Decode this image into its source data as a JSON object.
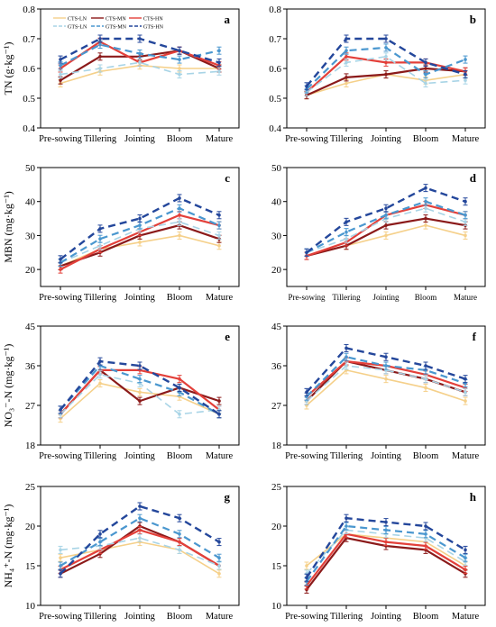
{
  "x_categories": [
    "Pre-sowing",
    "Tillering",
    "Jointing",
    "Bloom",
    "Mature"
  ],
  "legend": [
    "CTS-LN",
    "CTS-MN",
    "CTS-HN",
    "GTS-LN",
    "GTS-MN",
    "GTS-HN"
  ],
  "series_colors": {
    "CTS-LN": "#f5d08a",
    "CTS-MN": "#8b1a1a",
    "CTS-HN": "#e3403a",
    "GTS-LN": "#a8d4e6",
    "GTS-MN": "#4a97cf",
    "GTS-HN": "#24479b"
  },
  "chart_data": [
    {
      "panel": "a",
      "type": "line",
      "ylabel": "TN (g·kg⁻¹)",
      "ylim": [
        0.4,
        0.8
      ],
      "yticks": [
        "0.4",
        "0.5",
        "0.6",
        "0.7",
        "0.8"
      ],
      "x": [
        "Pre-sowing",
        "Tillering",
        "Jointing",
        "Bloom",
        "Mature"
      ],
      "legend_placement": "top-left",
      "series": [
        {
          "name": "CTS-LN",
          "values": [
            0.55,
            0.59,
            0.61,
            0.6,
            0.6
          ]
        },
        {
          "name": "CTS-MN",
          "values": [
            0.56,
            0.64,
            0.64,
            0.66,
            0.6
          ]
        },
        {
          "name": "CTS-HN",
          "values": [
            0.6,
            0.69,
            0.62,
            0.66,
            0.61
          ]
        },
        {
          "name": "GTS-LN",
          "values": [
            0.58,
            0.6,
            0.62,
            0.58,
            0.59
          ]
        },
        {
          "name": "GTS-MN",
          "values": [
            0.61,
            0.68,
            0.65,
            0.63,
            0.66
          ]
        },
        {
          "name": "GTS-HN",
          "values": [
            0.63,
            0.7,
            0.7,
            0.66,
            0.62
          ]
        }
      ]
    },
    {
      "panel": "b",
      "type": "line",
      "ylabel": "",
      "ylim": [
        0.4,
        0.8
      ],
      "yticks": [
        "0.4",
        "0.5",
        "0.6",
        "0.7",
        "0.8"
      ],
      "x": [
        "Pre-sowing",
        "Tillering",
        "Jointing",
        "Bloom",
        "Mature"
      ],
      "series": [
        {
          "name": "CTS-LN",
          "values": [
            0.51,
            0.55,
            0.58,
            0.56,
            0.58
          ]
        },
        {
          "name": "CTS-MN",
          "values": [
            0.51,
            0.57,
            0.58,
            0.6,
            0.59
          ]
        },
        {
          "name": "CTS-HN",
          "values": [
            0.52,
            0.64,
            0.62,
            0.62,
            0.59
          ]
        },
        {
          "name": "GTS-LN",
          "values": [
            0.52,
            0.62,
            0.64,
            0.55,
            0.56
          ]
        },
        {
          "name": "GTS-MN",
          "values": [
            0.53,
            0.66,
            0.67,
            0.58,
            0.63
          ]
        },
        {
          "name": "GTS-HN",
          "values": [
            0.54,
            0.7,
            0.7,
            0.62,
            0.58
          ]
        }
      ]
    },
    {
      "panel": "c",
      "type": "line",
      "ylabel": "MBN (mg·kg⁻¹)",
      "ylim": [
        15,
        50
      ],
      "yticks": [
        "20",
        "30",
        "40",
        "50"
      ],
      "x": [
        "Pre-sowing",
        "Tillering",
        "Jointing",
        "Bloom",
        "Mature"
      ],
      "series": [
        {
          "name": "CTS-LN",
          "values": [
            21,
            26,
            28,
            30,
            27
          ]
        },
        {
          "name": "CTS-MN",
          "values": [
            21,
            25,
            30,
            33,
            29
          ]
        },
        {
          "name": "CTS-HN",
          "values": [
            20,
            26,
            31,
            36,
            33
          ]
        },
        {
          "name": "GTS-LN",
          "values": [
            22,
            27,
            32,
            34,
            30
          ]
        },
        {
          "name": "GTS-MN",
          "values": [
            22,
            29,
            33,
            38,
            33
          ]
        },
        {
          "name": "GTS-HN",
          "values": [
            23,
            32,
            35,
            41,
            36
          ]
        }
      ]
    },
    {
      "panel": "d",
      "type": "line",
      "ylabel": "",
      "ylim": [
        15,
        50
      ],
      "yticks": [
        "20",
        "30",
        "40",
        "50"
      ],
      "x": [
        "Pre-sowing",
        "Tillering",
        "Jointing",
        "Bloom",
        "Mature"
      ],
      "series": [
        {
          "name": "CTS-LN",
          "values": [
            24,
            27,
            30,
            33,
            30
          ]
        },
        {
          "name": "CTS-MN",
          "values": [
            24,
            27,
            33,
            35,
            33
          ]
        },
        {
          "name": "CTS-HN",
          "values": [
            24,
            28,
            36,
            39,
            36
          ]
        },
        {
          "name": "GTS-LN",
          "values": [
            25,
            29,
            35,
            38,
            34
          ]
        },
        {
          "name": "GTS-MN",
          "values": [
            25,
            31,
            36,
            40,
            36
          ]
        },
        {
          "name": "GTS-HN",
          "values": [
            25,
            34,
            38,
            44,
            40
          ]
        }
      ]
    },
    {
      "panel": "e",
      "type": "line",
      "ylabel": "NO₃⁻-N (mg·kg⁻¹)",
      "ylim": [
        18,
        45
      ],
      "yticks": [
        "18",
        "27",
        "36",
        "45"
      ],
      "x": [
        "Pre-sowing",
        "Tillering",
        "Jointing",
        "Bloom",
        "Mature"
      ],
      "series": [
        {
          "name": "CTS-LN",
          "values": [
            24,
            32,
            30,
            29,
            25
          ]
        },
        {
          "name": "CTS-MN",
          "values": [
            25,
            35,
            28,
            31,
            28
          ]
        },
        {
          "name": "CTS-HN",
          "values": [
            25,
            35,
            35,
            33,
            26
          ]
        },
        {
          "name": "GTS-LN",
          "values": [
            25,
            34,
            32,
            25,
            26
          ]
        },
        {
          "name": "GTS-MN",
          "values": [
            26,
            36,
            33,
            30,
            25
          ]
        },
        {
          "name": "GTS-HN",
          "values": [
            26,
            37,
            36,
            31,
            25
          ]
        }
      ]
    },
    {
      "panel": "f",
      "type": "line",
      "ylabel": "",
      "ylim": [
        18,
        45
      ],
      "yticks": [
        "18",
        "27",
        "36",
        "45"
      ],
      "x": [
        "Pre-sowing",
        "Tillering",
        "Jointing",
        "Bloom",
        "Mature"
      ],
      "series": [
        {
          "name": "CTS-LN",
          "values": [
            27,
            35,
            33,
            31,
            28
          ]
        },
        {
          "name": "CTS-MN",
          "values": [
            28,
            37,
            35,
            33,
            30
          ]
        },
        {
          "name": "CTS-HN",
          "values": [
            29,
            37,
            36,
            34,
            31
          ]
        },
        {
          "name": "GTS-LN",
          "values": [
            28,
            36,
            35,
            33,
            30
          ]
        },
        {
          "name": "GTS-MN",
          "values": [
            29,
            38,
            36,
            35,
            32
          ]
        },
        {
          "name": "GTS-HN",
          "values": [
            30,
            40,
            38,
            36,
            33
          ]
        }
      ]
    },
    {
      "panel": "g",
      "type": "line",
      "ylabel": "NH₄⁺-N (mg·kg⁻¹)",
      "ylim": [
        10,
        25
      ],
      "yticks": [
        "10",
        "15",
        "20",
        "25"
      ],
      "x": [
        "Pre-sowing",
        "Tillering",
        "Jointing",
        "Bloom",
        "Mature"
      ],
      "series": [
        {
          "name": "CTS-LN",
          "values": [
            16,
            17,
            18,
            17,
            14
          ]
        },
        {
          "name": "CTS-MN",
          "values": [
            14,
            16.5,
            20,
            18,
            15
          ]
        },
        {
          "name": "CTS-HN",
          "values": [
            14.5,
            17,
            19.5,
            18,
            15
          ]
        },
        {
          "name": "GTS-LN",
          "values": [
            17,
            17.5,
            18.5,
            17,
            15
          ]
        },
        {
          "name": "GTS-MN",
          "values": [
            15,
            18,
            21,
            19,
            16
          ]
        },
        {
          "name": "GTS-HN",
          "values": [
            14,
            19,
            22.5,
            21,
            18
          ]
        }
      ]
    },
    {
      "panel": "h",
      "type": "line",
      "ylabel": "",
      "ylim": [
        10,
        25
      ],
      "yticks": [
        "10",
        "15",
        "20",
        "25"
      ],
      "x": [
        "Pre-sowing",
        "Tillering",
        "Jointing",
        "Bloom",
        "Mature"
      ],
      "series": [
        {
          "name": "CTS-LN",
          "values": [
            15,
            19,
            18.5,
            18,
            15
          ]
        },
        {
          "name": "CTS-MN",
          "values": [
            12,
            18.5,
            17.5,
            17,
            14
          ]
        },
        {
          "name": "CTS-HN",
          "values": [
            12.5,
            19,
            18,
            17.5,
            14.5
          ]
        },
        {
          "name": "GTS-LN",
          "values": [
            14,
            19.5,
            19,
            18.5,
            15.5
          ]
        },
        {
          "name": "GTS-MN",
          "values": [
            13,
            20,
            19.5,
            19,
            16
          ]
        },
        {
          "name": "GTS-HN",
          "values": [
            13.5,
            21,
            20.5,
            20,
            17
          ]
        }
      ]
    }
  ]
}
